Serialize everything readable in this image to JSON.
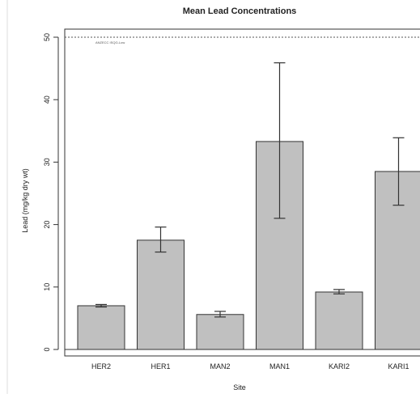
{
  "chart_data": {
    "type": "bar",
    "title": "Mean Lead Concentrations",
    "xlabel": "Site",
    "ylabel": "Lead (mg/kg dry wt)",
    "categories": [
      "HER2",
      "HER1",
      "MAN2",
      "MAN1",
      "KARI2",
      "KARI1"
    ],
    "values": [
      7.0,
      17.5,
      5.6,
      33.3,
      9.2,
      28.5
    ],
    "error_low": [
      6.8,
      15.6,
      5.2,
      21.0,
      8.9,
      23.1
    ],
    "error_high": [
      7.2,
      19.6,
      6.1,
      45.9,
      9.6,
      33.9
    ],
    "ylim": [
      0,
      50
    ],
    "yticks": [
      0,
      10,
      20,
      30,
      40,
      50
    ],
    "grid": false,
    "bar_color": "#c0c0c0",
    "reference_line": {
      "value": 50,
      "label": "ANZECC ISQG-Low"
    }
  }
}
